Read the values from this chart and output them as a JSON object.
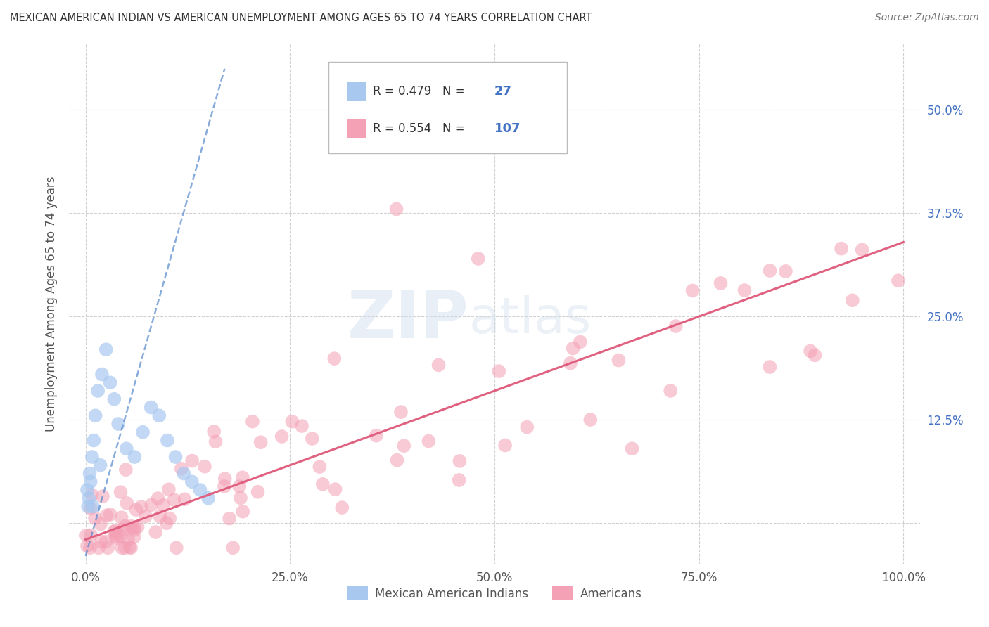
{
  "title": "MEXICAN AMERICAN INDIAN VS AMERICAN UNEMPLOYMENT AMONG AGES 65 TO 74 YEARS CORRELATION CHART",
  "source": "Source: ZipAtlas.com",
  "ylabel": "Unemployment Among Ages 65 to 74 years",
  "xlim": [
    -2,
    102
  ],
  "ylim": [
    -5,
    58
  ],
  "xticks": [
    0,
    25,
    50,
    75,
    100
  ],
  "xticklabels": [
    "0.0%",
    "25.0%",
    "50.0%",
    "75.0%",
    "100.0%"
  ],
  "yticks": [
    0,
    12.5,
    25,
    37.5,
    50
  ],
  "yticklabels": [
    "",
    "12.5%",
    "25.0%",
    "37.5%",
    "50.0%"
  ],
  "blue_R": 0.479,
  "blue_N": 27,
  "pink_R": 0.554,
  "pink_N": 107,
  "blue_color": "#a8c8f0",
  "blue_line_color": "#5588cc",
  "pink_color": "#f4a0b5",
  "pink_line_color": "#e06080",
  "watermark_zip": "ZIP",
  "watermark_atlas": "atlas",
  "legend_label_blue": "Mexican American Indians",
  "legend_label_pink": "Americans",
  "blue_x": [
    0.3,
    0.5,
    0.8,
    1.0,
    1.2,
    1.5,
    2.0,
    2.5,
    3.0,
    3.5,
    4.0,
    5.0,
    6.0,
    7.0,
    8.0,
    9.0,
    10.0,
    11.0,
    12.0,
    13.0,
    14.0,
    15.0,
    0.2,
    0.4,
    0.6,
    0.9,
    1.8
  ],
  "blue_y": [
    2.0,
    6.0,
    8.0,
    10.0,
    13.0,
    16.0,
    18.0,
    21.0,
    17.0,
    15.0,
    12.0,
    9.0,
    8.0,
    11.0,
    14.0,
    13.0,
    10.0,
    8.0,
    6.0,
    5.0,
    4.0,
    3.0,
    4.0,
    3.0,
    5.0,
    2.0,
    7.0
  ],
  "blue_dash_x0": 0,
  "blue_dash_x1": 17,
  "blue_dash_y0": -4,
  "blue_dash_y1": 55,
  "pink_line_x0": 0,
  "pink_line_x1": 100,
  "pink_line_y0": -2,
  "pink_line_y1": 34
}
